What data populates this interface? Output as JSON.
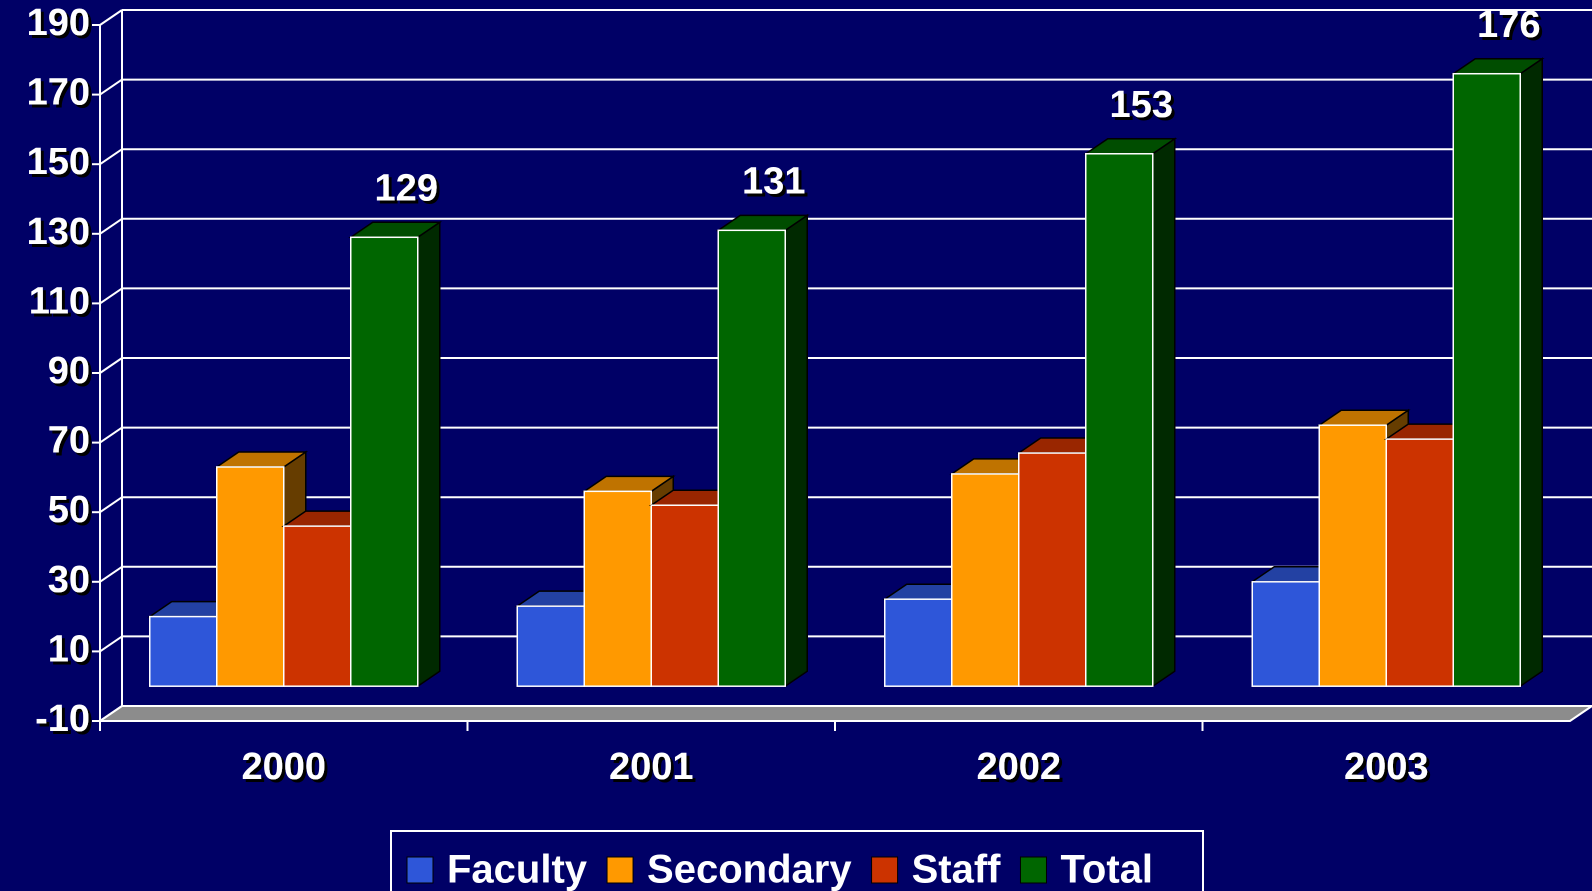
{
  "chart_data": {
    "type": "bar3d",
    "categories": [
      "2000",
      "2001",
      "2002",
      "2003"
    ],
    "series": [
      {
        "name": "Faculty",
        "color": "#2e56d9",
        "values": [
          20,
          23,
          25,
          30
        ]
      },
      {
        "name": "Secondary",
        "color": "#ff9900",
        "values": [
          63,
          56,
          61,
          75
        ]
      },
      {
        "name": "Staff",
        "color": "#cc3300",
        "values": [
          46,
          52,
          67,
          71
        ]
      },
      {
        "name": "Total",
        "color": "#006600",
        "values": [
          129,
          131,
          153,
          176
        ]
      }
    ],
    "labeled_series": [
      3
    ],
    "ylim": [
      -10,
      190
    ],
    "yticks": [
      -10,
      10,
      30,
      50,
      70,
      90,
      110,
      130,
      150,
      170,
      190
    ],
    "grid": true,
    "background": "#000066",
    "floor_color": "#8c8c8c"
  }
}
